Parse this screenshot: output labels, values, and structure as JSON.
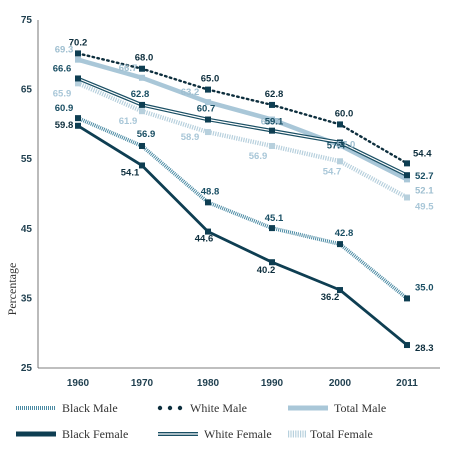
{
  "chart_data": {
    "type": "line",
    "x": [
      "1960",
      "1970",
      "1980",
      "1990",
      "2000",
      "2011"
    ],
    "ylabel": "Percentage",
    "ylim": [
      25,
      75
    ],
    "yticks": [
      25,
      35,
      45,
      55,
      65,
      75
    ],
    "grid": false,
    "legend_placement": "bottom",
    "series": [
      {
        "name": "Black Male",
        "key": "black_male",
        "values": [
          60.9,
          56.9,
          48.8,
          45.1,
          42.8,
          35.0
        ],
        "color": "#4a8aa3",
        "style": "hatched"
      },
      {
        "name": "White Male",
        "key": "white_male",
        "values": [
          70.2,
          68.0,
          65.0,
          62.8,
          60.0,
          54.4
        ],
        "color": "#0e2f3e",
        "style": "dotted"
      },
      {
        "name": "Total Male",
        "key": "total_male",
        "values": [
          69.3,
          66.7,
          63.2,
          60.7,
          57.0,
          52.1
        ],
        "color": "#a9c7d8",
        "style": "thick"
      },
      {
        "name": "Black Female",
        "key": "black_female",
        "values": [
          59.8,
          54.1,
          44.6,
          40.2,
          36.2,
          28.3
        ],
        "color": "#0e3e52",
        "style": "solid-thick"
      },
      {
        "name": "White Female",
        "key": "white_female",
        "values": [
          66.6,
          62.8,
          60.7,
          59.1,
          57.4,
          52.7
        ],
        "color": "#1a4f64",
        "style": "double"
      },
      {
        "name": "Total Female",
        "key": "total_female",
        "values": [
          65.9,
          61.9,
          58.9,
          56.9,
          54.7,
          49.5
        ],
        "color": "#b7d0dd",
        "style": "dashed-thick"
      }
    ],
    "data_labels": {
      "black_male": [
        "60.9",
        "56.9",
        "48.8",
        "45.1",
        "42.8",
        "35.0"
      ],
      "white_male": [
        "70.2",
        "68.0",
        "65.0",
        "62.8",
        "60.0",
        "54.4"
      ],
      "total_male": [
        "69.3",
        "66.7",
        "63.2",
        "60.7",
        "57.0",
        "52.1"
      ],
      "black_female": [
        "59.8",
        "54.1",
        "44.6",
        "40.2",
        "36.2",
        "28.3"
      ],
      "white_female": [
        "66.6",
        "62.8",
        "60.7",
        "59.1",
        "57.4",
        "52.7"
      ],
      "total_female": [
        "65.9",
        "61.9",
        "58.9",
        "56.9",
        "54.7",
        "49.5"
      ]
    }
  },
  "legend": [
    {
      "key": "black_male",
      "label": "Black Male"
    },
    {
      "key": "white_male",
      "label": "White Male"
    },
    {
      "key": "total_male",
      "label": "Total Male"
    },
    {
      "key": "black_female",
      "label": "Black Female"
    },
    {
      "key": "white_female",
      "label": "White Female"
    },
    {
      "key": "total_female",
      "label": "Total Female"
    }
  ]
}
